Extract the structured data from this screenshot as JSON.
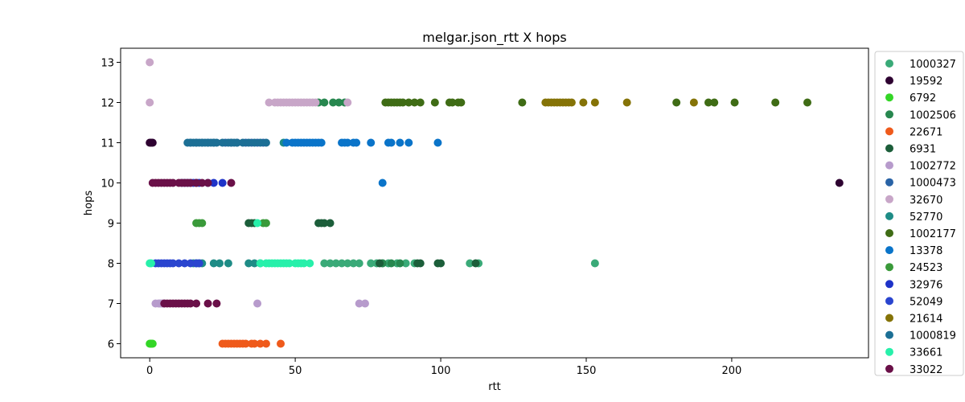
{
  "chart_data": {
    "type": "scatter",
    "title": "melgar.json_rtt X hops",
    "xlabel": "rtt",
    "ylabel": "hops",
    "xlim": [
      -10,
      247
    ],
    "ylim": [
      5.65,
      13.35
    ],
    "xticks": [
      0,
      50,
      100,
      150,
      200
    ],
    "yticks": [
      6,
      7,
      8,
      9,
      10,
      11,
      12,
      13
    ],
    "grid": false,
    "legend_position": "outside-right",
    "series": [
      {
        "name": "1000327",
        "color": "#3aaa78",
        "x": [
          60,
          62,
          64,
          66,
          68,
          70,
          72,
          76,
          78,
          80,
          82,
          85,
          88,
          91,
          110,
          113,
          153
        ],
        "y": [
          8,
          8,
          8,
          8,
          8,
          8,
          8,
          8,
          8,
          8,
          8,
          8,
          8,
          8,
          8,
          8,
          8
        ]
      },
      {
        "name": "19592",
        "color": "#2e0231",
        "x": [
          0,
          0.5,
          1,
          237
        ],
        "y": [
          11,
          11,
          11,
          10
        ]
      },
      {
        "name": "6792",
        "color": "#33d626",
        "x": [
          0,
          0.3,
          0.6,
          1
        ],
        "y": [
          6,
          6,
          6,
          6
        ]
      },
      {
        "name": "1002506",
        "color": "#27874f",
        "x": [
          58,
          60,
          63,
          65,
          67,
          80,
          83,
          86
        ],
        "y": [
          12,
          12,
          12,
          12,
          12,
          8,
          8,
          8
        ]
      },
      {
        "name": "22671",
        "color": "#ef5a1b",
        "x": [
          25,
          26,
          27,
          28,
          29,
          30,
          31,
          32,
          33,
          35,
          36,
          38,
          40,
          45
        ],
        "y": [
          6,
          6,
          6,
          6,
          6,
          6,
          6,
          6,
          6,
          6,
          6,
          6,
          6,
          6
        ]
      },
      {
        "name": "6931",
        "color": "#1c5e3a",
        "x": [
          34,
          35,
          36,
          58,
          59,
          60,
          62,
          79,
          92,
          93,
          99,
          100,
          112
        ],
        "y": [
          9,
          9,
          9,
          9,
          9,
          9,
          9,
          8,
          8,
          8,
          8,
          8,
          8
        ]
      },
      {
        "name": "1002772",
        "color": "#b79bcc",
        "x": [
          2,
          3,
          3.5,
          4,
          4.5,
          5,
          37,
          72,
          74
        ],
        "y": [
          7,
          7,
          7,
          7,
          7,
          7,
          7,
          7,
          7
        ]
      },
      {
        "name": "1000473",
        "color": "#2963a6",
        "x": [
          14,
          16,
          18,
          20,
          22,
          26,
          28,
          30,
          33,
          35,
          37,
          39
        ],
        "y": [
          11,
          11,
          11,
          11,
          11,
          11,
          11,
          11,
          11,
          11,
          11,
          11
        ]
      },
      {
        "name": "32670",
        "color": "#c8a6c8",
        "x": [
          0,
          0,
          41,
          43,
          44,
          45,
          46,
          47,
          48,
          49,
          50,
          51,
          52,
          53,
          54,
          55,
          56,
          57,
          68
        ],
        "y": [
          13,
          12,
          12,
          12,
          12,
          12,
          12,
          12,
          12,
          12,
          12,
          12,
          12,
          12,
          12,
          12,
          12,
          12,
          12
        ]
      },
      {
        "name": "52770",
        "color": "#1e8c86",
        "x": [
          15,
          16,
          17,
          18,
          22,
          24,
          27,
          34,
          36,
          38,
          46
        ],
        "y": [
          8,
          8,
          8,
          8,
          8,
          8,
          8,
          8,
          8,
          8,
          11
        ]
      },
      {
        "name": "1002177",
        "color": "#3f6c15",
        "x": [
          81,
          82,
          83,
          84,
          85,
          86,
          87,
          89,
          91,
          93,
          98,
          103,
          104,
          106,
          107,
          128,
          181,
          192,
          194,
          201,
          215,
          226
        ],
        "y": [
          12,
          12,
          12,
          12,
          12,
          12,
          12,
          12,
          12,
          12,
          12,
          12,
          12,
          12,
          12,
          12,
          12,
          12,
          12,
          12,
          12,
          12
        ]
      },
      {
        "name": "13378",
        "color": "#0a74c9",
        "x": [
          47,
          49,
          50,
          51,
          52,
          53,
          54,
          55,
          56,
          57,
          58,
          59,
          66,
          67,
          68,
          70,
          71,
          76,
          82,
          83,
          86,
          89,
          99,
          80
        ],
        "y": [
          11,
          11,
          11,
          11,
          11,
          11,
          11,
          11,
          11,
          11,
          11,
          11,
          11,
          11,
          11,
          11,
          11,
          11,
          11,
          11,
          11,
          11,
          11,
          10
        ]
      },
      {
        "name": "24523",
        "color": "#3a9a3a",
        "x": [
          16,
          17,
          18,
          39,
          40
        ],
        "y": [
          9,
          9,
          9,
          9,
          9
        ]
      },
      {
        "name": "32976",
        "color": "#1e33c8",
        "x": [
          11,
          12,
          13,
          14,
          15,
          16,
          17,
          20,
          22,
          25
        ],
        "y": [
          10,
          10,
          10,
          10,
          10,
          10,
          10,
          10,
          10,
          10
        ]
      },
      {
        "name": "52049",
        "color": "#2a45cf",
        "x": [
          2,
          3,
          4,
          5,
          6,
          7,
          8,
          10,
          12,
          14,
          16,
          17
        ],
        "y": [
          8,
          8,
          8,
          8,
          8,
          8,
          8,
          8,
          8,
          8,
          8,
          8
        ]
      },
      {
        "name": "21614",
        "color": "#857307",
        "x": [
          136,
          137,
          138,
          139,
          140,
          141,
          142,
          143,
          144,
          145,
          149,
          153,
          164,
          187
        ],
        "y": [
          12,
          12,
          12,
          12,
          12,
          12,
          12,
          12,
          12,
          12,
          12,
          12,
          12,
          12
        ]
      },
      {
        "name": "1000819",
        "color": "#1c6f95",
        "x": [
          13,
          14,
          15,
          16,
          17,
          18,
          19,
          20,
          21,
          22,
          23,
          25,
          27,
          28,
          29,
          30,
          32,
          34,
          36,
          38,
          40
        ],
        "y": [
          11,
          11,
          11,
          11,
          11,
          11,
          11,
          11,
          11,
          11,
          11,
          11,
          11,
          11,
          11,
          11,
          11,
          11,
          11,
          11,
          11
        ]
      },
      {
        "name": "33661",
        "color": "#27f0aa",
        "x": [
          0,
          0.5,
          38,
          40,
          41,
          42,
          43,
          44,
          45,
          46,
          47,
          48,
          50,
          51,
          52,
          53,
          55,
          37
        ],
        "y": [
          8,
          8,
          8,
          8,
          8,
          8,
          8,
          8,
          8,
          8,
          8,
          8,
          8,
          8,
          8,
          8,
          8,
          9
        ]
      },
      {
        "name": "33022",
        "color": "#6a1048",
        "x": [
          1,
          2,
          3,
          4,
          5,
          6,
          7,
          8,
          10,
          11,
          12,
          13,
          14,
          16,
          18,
          20,
          28,
          5,
          6,
          7,
          8,
          9,
          10,
          11,
          12,
          13,
          14,
          16,
          20,
          23
        ],
        "y": [
          10,
          10,
          10,
          10,
          10,
          10,
          10,
          10,
          10,
          10,
          10,
          10,
          10,
          10,
          10,
          10,
          10,
          7,
          7,
          7,
          7,
          7,
          7,
          7,
          7,
          7,
          7,
          7,
          7,
          7
        ]
      }
    ]
  }
}
